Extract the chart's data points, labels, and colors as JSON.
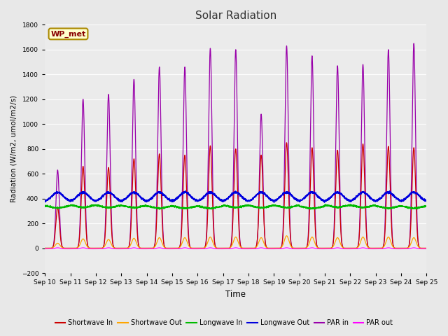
{
  "title": "Solar Radiation",
  "ylabel": "Radiation (W/m2, umol/m2/s)",
  "xlabel": "Time",
  "ylim": [
    -200,
    1800
  ],
  "yticks": [
    -200,
    0,
    200,
    400,
    600,
    800,
    1000,
    1200,
    1400,
    1600,
    1800
  ],
  "num_days": 15,
  "points_per_day": 288,
  "fig_bg": "#e8e8e8",
  "plot_bg": "#ebebeb",
  "colors": {
    "shortwave_in": "#cc0000",
    "shortwave_out": "#ffa500",
    "longwave_in": "#00bb00",
    "longwave_out": "#0000dd",
    "par_in": "#9900aa",
    "par_out": "#ff00ff"
  },
  "legend_labels": [
    "Shortwave In",
    "Shortwave Out",
    "Longwave In",
    "Longwave Out",
    "PAR in",
    "PAR out"
  ],
  "annotation_text": "WP_met",
  "annotation_bg": "#ffffcc",
  "annotation_border": "#aa8800",
  "sw_in_peaks": [
    330,
    660,
    650,
    720,
    760,
    750,
    825,
    800,
    750,
    850,
    810,
    790,
    840,
    820,
    810
  ],
  "sw_out_peaks": [
    40,
    75,
    70,
    80,
    85,
    85,
    90,
    90,
    85,
    100,
    90,
    85,
    90,
    90,
    85
  ],
  "par_in_peaks": [
    630,
    1200,
    1240,
    1360,
    1460,
    1460,
    1610,
    1600,
    1080,
    1630,
    1550,
    1470,
    1480,
    1600,
    1650
  ],
  "lw_in_base": 345,
  "lw_out_base": 375,
  "lw_out_amplitude": 75,
  "par_out_base": -5,
  "grid_color": "#ffffff",
  "grid_alpha": 0.9
}
